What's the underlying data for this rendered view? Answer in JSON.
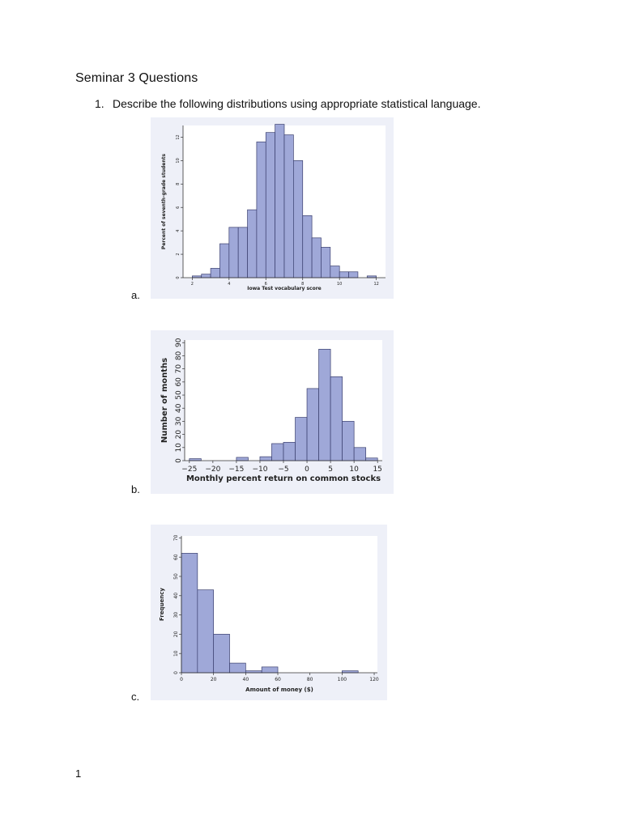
{
  "document": {
    "title": "Seminar 3 Questions",
    "question_number": "1.",
    "question_text": "Describe the following distributions using appropriate statistical language.",
    "page_number": "1"
  },
  "figures": [
    {
      "label": "a."
    },
    {
      "label": "b."
    },
    {
      "label": "c."
    }
  ],
  "chart_data": [
    {
      "type": "bar",
      "xlabel": "Iowa Test vocabulary score",
      "ylabel": "Percent of seventh-grade students",
      "x_ticks": [
        "2",
        "4",
        "6",
        "8",
        "10",
        "12"
      ],
      "y_ticks": [
        "0",
        "2",
        "4",
        "6",
        "8",
        "10",
        "12"
      ],
      "xlim": [
        1.5,
        12.5
      ],
      "ylim": [
        0,
        13
      ],
      "bin_width": 0.5,
      "bin_starts": [
        2,
        2.5,
        3,
        3.5,
        4,
        4.5,
        5,
        5.5,
        6,
        6.5,
        7,
        7.5,
        8,
        8.5,
        9,
        9.5,
        10,
        10.5,
        11,
        11.5
      ],
      "values": [
        0.15,
        0.3,
        0.8,
        2.9,
        4.3,
        4.3,
        5.8,
        11.6,
        12.4,
        13.1,
        12.2,
        10.0,
        5.3,
        3.4,
        2.6,
        1.0,
        0.5,
        0.5,
        0,
        0.15
      ]
    },
    {
      "type": "bar",
      "xlabel": "Monthly percent return on common stocks",
      "ylabel": "Number of months",
      "x_ticks": [
        "−25",
        "−20",
        "−15",
        "−10",
        "−5",
        "0",
        "5",
        "10",
        "15"
      ],
      "y_ticks": [
        "0",
        "10",
        "20",
        "30",
        "40",
        "50",
        "60",
        "70",
        "80",
        "90"
      ],
      "xlim": [
        -26,
        16
      ],
      "ylim": [
        0,
        92
      ],
      "bin_width": 2.5,
      "bin_starts": [
        -25,
        -22.5,
        -20,
        -17.5,
        -15,
        -12.5,
        -10,
        -7.5,
        -5,
        -2.5,
        0,
        2.5,
        5,
        7.5,
        10,
        12.5
      ],
      "values": [
        1.5,
        0,
        0,
        0,
        2.5,
        0,
        3,
        13,
        14,
        33,
        55,
        85,
        64,
        30,
        10,
        2
      ]
    },
    {
      "type": "bar",
      "xlabel": "Amount of money ($)",
      "ylabel": "Frequency",
      "x_ticks": [
        "0",
        "20",
        "40",
        "60",
        "80",
        "100",
        "120"
      ],
      "y_ticks": [
        "0",
        "10",
        "20",
        "30",
        "40",
        "50",
        "60",
        "70"
      ],
      "xlim": [
        0,
        122
      ],
      "ylim": [
        0,
        71
      ],
      "bin_width": 10,
      "bin_starts": [
        0,
        10,
        20,
        30,
        40,
        50,
        60,
        70,
        80,
        90,
        100,
        110
      ],
      "values": [
        62,
        43,
        20,
        5,
        1,
        3,
        0,
        0,
        0,
        0,
        1,
        0
      ]
    }
  ],
  "colors": {
    "bar_fill": "#9fa8d8",
    "bar_stroke": "#3a3f6e",
    "panel_bg": "#eef0f8",
    "plot_bg": "#ffffff"
  }
}
